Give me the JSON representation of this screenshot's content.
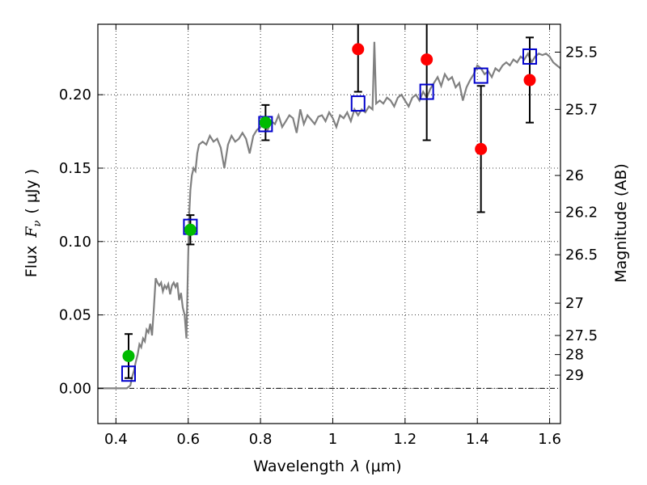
{
  "chart_data": {
    "type": "scatter",
    "xlabel_prefix": "Wavelength",
    "xlabel_var": "λ",
    "xlabel_units": "(μm)",
    "ylabel_prefix": "Flux",
    "ylabel_var": "F",
    "ylabel_sub": "ν",
    "ylabel_units": "( μJy )",
    "y2label": "Magnitude (AB)",
    "xlim": [
      0.35,
      1.63
    ],
    "ylim": [
      -0.024,
      0.248
    ],
    "grid": true,
    "x_ticks": [
      0.4,
      0.6,
      0.8,
      1.0,
      1.2,
      1.4,
      1.6
    ],
    "x_tick_labels": [
      "0.4",
      "0.6",
      "0.8",
      "1",
      "1.2",
      "1.4",
      "1.6"
    ],
    "y_ticks": [
      0.0,
      0.05,
      0.1,
      0.15,
      0.2
    ],
    "y_tick_labels": [
      "0.00",
      "0.05",
      "0.10",
      "0.15",
      "0.20"
    ],
    "mag_ticks": [
      {
        "label": "25.5",
        "flux": 0.229
      },
      {
        "label": "25.7",
        "flux": 0.19
      },
      {
        "label": "26",
        "flux": 0.145
      },
      {
        "label": "26.2",
        "flux": 0.12
      },
      {
        "label": "26.5",
        "flux": 0.091
      },
      {
        "label": "27",
        "flux": 0.058
      },
      {
        "label": "27.5",
        "flux": 0.036
      },
      {
        "label": "28",
        "flux": 0.023
      },
      {
        "label": "29",
        "flux": 0.009
      }
    ],
    "series": [
      {
        "name": "model SED",
        "kind": "line",
        "color": "#808080",
        "points": [
          [
            0.35,
            0.0
          ],
          [
            0.43,
            0.0
          ],
          [
            0.44,
            0.002
          ],
          [
            0.445,
            0.008
          ],
          [
            0.45,
            0.012
          ],
          [
            0.455,
            0.018
          ],
          [
            0.46,
            0.023
          ],
          [
            0.465,
            0.03
          ],
          [
            0.47,
            0.028
          ],
          [
            0.475,
            0.034
          ],
          [
            0.48,
            0.032
          ],
          [
            0.485,
            0.04
          ],
          [
            0.49,
            0.038
          ],
          [
            0.495,
            0.044
          ],
          [
            0.5,
            0.036
          ],
          [
            0.505,
            0.055
          ],
          [
            0.51,
            0.075
          ],
          [
            0.515,
            0.072
          ],
          [
            0.52,
            0.07
          ],
          [
            0.525,
            0.072
          ],
          [
            0.53,
            0.066
          ],
          [
            0.535,
            0.07
          ],
          [
            0.54,
            0.068
          ],
          [
            0.545,
            0.071
          ],
          [
            0.55,
            0.064
          ],
          [
            0.555,
            0.07
          ],
          [
            0.56,
            0.072
          ],
          [
            0.565,
            0.069
          ],
          [
            0.57,
            0.072
          ],
          [
            0.575,
            0.06
          ],
          [
            0.58,
            0.065
          ],
          [
            0.585,
            0.055
          ],
          [
            0.59,
            0.05
          ],
          [
            0.595,
            0.034
          ],
          [
            0.6,
            0.09
          ],
          [
            0.603,
            0.12
          ],
          [
            0.606,
            0.135
          ],
          [
            0.61,
            0.145
          ],
          [
            0.615,
            0.15
          ],
          [
            0.62,
            0.148
          ],
          [
            0.625,
            0.16
          ],
          [
            0.63,
            0.166
          ],
          [
            0.64,
            0.168
          ],
          [
            0.65,
            0.166
          ],
          [
            0.66,
            0.172
          ],
          [
            0.67,
            0.168
          ],
          [
            0.68,
            0.17
          ],
          [
            0.69,
            0.164
          ],
          [
            0.7,
            0.15
          ],
          [
            0.71,
            0.166
          ],
          [
            0.72,
            0.172
          ],
          [
            0.73,
            0.168
          ],
          [
            0.74,
            0.17
          ],
          [
            0.75,
            0.174
          ],
          [
            0.76,
            0.17
          ],
          [
            0.77,
            0.16
          ],
          [
            0.78,
            0.172
          ],
          [
            0.79,
            0.176
          ],
          [
            0.8,
            0.178
          ],
          [
            0.81,
            0.18
          ],
          [
            0.82,
            0.176
          ],
          [
            0.83,
            0.182
          ],
          [
            0.84,
            0.18
          ],
          [
            0.85,
            0.186
          ],
          [
            0.86,
            0.178
          ],
          [
            0.87,
            0.182
          ],
          [
            0.88,
            0.186
          ],
          [
            0.89,
            0.184
          ],
          [
            0.9,
            0.174
          ],
          [
            0.91,
            0.19
          ],
          [
            0.92,
            0.18
          ],
          [
            0.93,
            0.186
          ],
          [
            0.94,
            0.183
          ],
          [
            0.95,
            0.18
          ],
          [
            0.96,
            0.185
          ],
          [
            0.97,
            0.186
          ],
          [
            0.98,
            0.182
          ],
          [
            0.99,
            0.188
          ],
          [
            1.0,
            0.184
          ],
          [
            1.01,
            0.178
          ],
          [
            1.02,
            0.186
          ],
          [
            1.03,
            0.184
          ],
          [
            1.04,
            0.188
          ],
          [
            1.05,
            0.182
          ],
          [
            1.06,
            0.19
          ],
          [
            1.07,
            0.186
          ],
          [
            1.08,
            0.19
          ],
          [
            1.09,
            0.188
          ],
          [
            1.1,
            0.192
          ],
          [
            1.11,
            0.19
          ],
          [
            1.115,
            0.236
          ],
          [
            1.12,
            0.194
          ],
          [
            1.13,
            0.196
          ],
          [
            1.14,
            0.194
          ],
          [
            1.15,
            0.198
          ],
          [
            1.16,
            0.196
          ],
          [
            1.17,
            0.192
          ],
          [
            1.18,
            0.198
          ],
          [
            1.19,
            0.2
          ],
          [
            1.2,
            0.196
          ],
          [
            1.21,
            0.192
          ],
          [
            1.22,
            0.198
          ],
          [
            1.23,
            0.2
          ],
          [
            1.24,
            0.196
          ],
          [
            1.25,
            0.202
          ],
          [
            1.26,
            0.198
          ],
          [
            1.27,
            0.204
          ],
          [
            1.28,
            0.208
          ],
          [
            1.29,
            0.212
          ],
          [
            1.3,
            0.206
          ],
          [
            1.31,
            0.214
          ],
          [
            1.32,
            0.21
          ],
          [
            1.33,
            0.212
          ],
          [
            1.34,
            0.205
          ],
          [
            1.35,
            0.208
          ],
          [
            1.36,
            0.196
          ],
          [
            1.37,
            0.205
          ],
          [
            1.38,
            0.21
          ],
          [
            1.39,
            0.214
          ],
          [
            1.4,
            0.22
          ],
          [
            1.41,
            0.218
          ],
          [
            1.42,
            0.214
          ],
          [
            1.43,
            0.216
          ],
          [
            1.44,
            0.212
          ],
          [
            1.45,
            0.218
          ],
          [
            1.46,
            0.216
          ],
          [
            1.47,
            0.22
          ],
          [
            1.48,
            0.222
          ],
          [
            1.49,
            0.22
          ],
          [
            1.5,
            0.224
          ],
          [
            1.51,
            0.222
          ],
          [
            1.52,
            0.226
          ],
          [
            1.53,
            0.224
          ],
          [
            1.54,
            0.228
          ],
          [
            1.55,
            0.222
          ],
          [
            1.56,
            0.226
          ],
          [
            1.57,
            0.228
          ],
          [
            1.58,
            0.227
          ],
          [
            1.59,
            0.228
          ],
          [
            1.6,
            0.226
          ],
          [
            1.61,
            0.222
          ],
          [
            1.62,
            0.22
          ],
          [
            1.63,
            0.218
          ]
        ]
      },
      {
        "name": "model photometry",
        "kind": "open-square",
        "color": "#0000cc",
        "points": [
          {
            "x": 0.435,
            "y": 0.01
          },
          {
            "x": 0.606,
            "y": 0.11
          },
          {
            "x": 0.814,
            "y": 0.18
          },
          {
            "x": 1.07,
            "y": 0.194
          },
          {
            "x": 1.26,
            "y": 0.202
          },
          {
            "x": 1.41,
            "y": 0.213
          },
          {
            "x": 1.545,
            "y": 0.226
          }
        ]
      },
      {
        "name": "observed (green)",
        "kind": "filled-circle",
        "color": "#00bb00",
        "points": [
          {
            "x": 0.435,
            "y": 0.022,
            "err": 0.015
          },
          {
            "x": 0.606,
            "y": 0.108,
            "err": 0.01
          },
          {
            "x": 0.814,
            "y": 0.181,
            "err": 0.012
          }
        ]
      },
      {
        "name": "observed (red)",
        "kind": "filled-circle",
        "color": "#ff0000",
        "points": [
          {
            "x": 1.07,
            "y": 0.231,
            "err": 0.029
          },
          {
            "x": 1.26,
            "y": 0.224,
            "err": 0.055
          },
          {
            "x": 1.41,
            "y": 0.163,
            "err": 0.043
          },
          {
            "x": 1.545,
            "y": 0.21,
            "err": 0.029
          }
        ]
      }
    ]
  }
}
